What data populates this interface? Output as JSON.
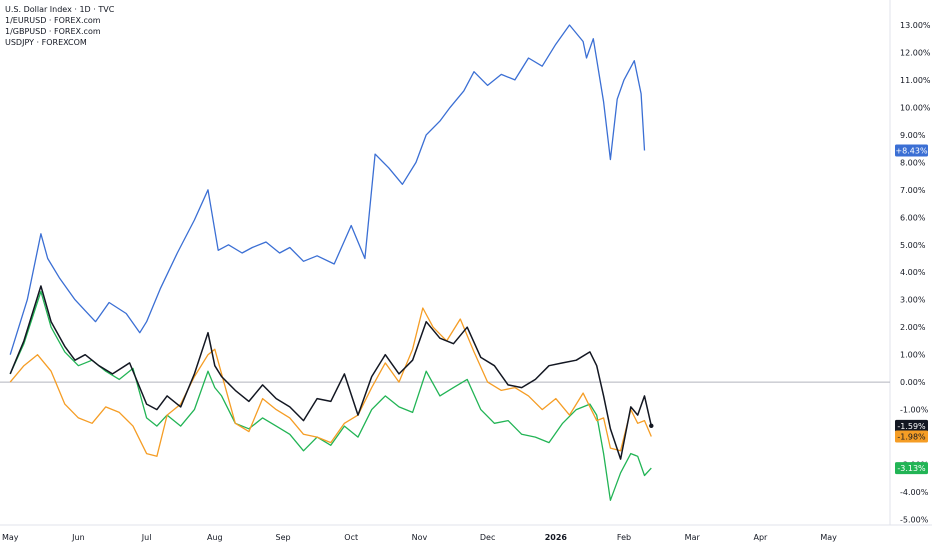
{
  "legend": {
    "title": "U.S. Dollar Index · 1D · TVC",
    "items": [
      "1/EURUSD · FOREX.com",
      "1/GBPUSD · FOREX.com",
      "USDJPY · FOREXCOM"
    ]
  },
  "chart_data": {
    "type": "line",
    "y_unit": "percent change",
    "ylim": [
      -5.2,
      13.4
    ],
    "yticks": [
      13,
      12,
      11,
      10,
      9,
      8,
      7,
      6,
      5,
      4,
      3,
      2,
      1,
      0,
      -1,
      -2,
      -3,
      -4,
      -5
    ],
    "ytick_labels": [
      "13.00%",
      "12.00%",
      "11.00%",
      "10.00%",
      "9.00%",
      "8.00%",
      "7.00%",
      "6.00%",
      "5.00%",
      "4.00%",
      "3.00%",
      "2.00%",
      "1.00%",
      "0.00%",
      "-1.00%",
      "-2.00%",
      "-3.00%",
      "-4.00%",
      "-5.00%"
    ],
    "x_labels": [
      "May",
      "Jun",
      "Jul",
      "Aug",
      "Sep",
      "Oct",
      "Nov",
      "Dec",
      "2026",
      "Feb",
      "Mar",
      "Apr",
      "May"
    ],
    "x_label_positions": [
      0,
      1,
      2,
      3,
      4,
      5,
      6,
      7,
      8,
      9,
      10,
      11,
      12
    ],
    "xlim": [
      -0.15,
      12.9
    ],
    "series": [
      {
        "color": "#3b6fd4",
        "last_label": "+8.43%",
        "x": [
          0,
          0.25,
          0.45,
          0.55,
          0.72,
          0.95,
          1.1,
          1.25,
          1.45,
          1.7,
          1.9,
          2.0,
          2.2,
          2.45,
          2.7,
          2.9,
          3.05,
          3.2,
          3.4,
          3.55,
          3.75,
          3.95,
          4.1,
          4.3,
          4.5,
          4.75,
          5.0,
          5.2,
          5.35,
          5.55,
          5.75,
          5.95,
          6.1,
          6.3,
          6.45,
          6.65,
          6.8,
          7.0,
          7.2,
          7.4,
          7.6,
          7.8,
          8.0,
          8.2,
          8.4,
          8.45,
          8.55,
          8.7,
          8.8,
          8.9,
          9.0,
          9.15,
          9.25,
          9.3
        ],
        "y": [
          1.0,
          3.0,
          5.4,
          4.5,
          3.8,
          3.0,
          2.6,
          2.2,
          2.9,
          2.5,
          1.8,
          2.2,
          3.4,
          4.7,
          5.9,
          7.0,
          4.8,
          5.0,
          4.7,
          4.9,
          5.1,
          4.7,
          4.9,
          4.4,
          4.6,
          4.3,
          5.7,
          4.5,
          8.3,
          7.8,
          7.2,
          8.0,
          9.0,
          9.5,
          10.0,
          10.6,
          11.3,
          10.8,
          11.2,
          11.0,
          11.8,
          11.5,
          12.3,
          13.0,
          12.4,
          11.8,
          12.5,
          10.2,
          8.1,
          10.3,
          11.0,
          11.7,
          10.5,
          8.43
        ]
      },
      {
        "color": "#131722",
        "last_label": "-1.59%",
        "x": [
          0,
          0.2,
          0.45,
          0.6,
          0.8,
          0.95,
          1.1,
          1.3,
          1.5,
          1.75,
          2.0,
          2.15,
          2.3,
          2.5,
          2.7,
          2.9,
          3.0,
          3.1,
          3.3,
          3.5,
          3.7,
          3.9,
          4.1,
          4.3,
          4.5,
          4.7,
          4.9,
          5.1,
          5.3,
          5.5,
          5.7,
          5.9,
          6.1,
          6.3,
          6.5,
          6.7,
          6.9,
          7.1,
          7.3,
          7.5,
          7.7,
          7.9,
          8.1,
          8.3,
          8.5,
          8.6,
          8.7,
          8.8,
          8.95,
          9.1,
          9.2,
          9.3,
          9.4
        ],
        "y": [
          0.3,
          1.5,
          3.5,
          2.2,
          1.3,
          0.8,
          1.0,
          0.6,
          0.3,
          0.7,
          -0.8,
          -1.0,
          -0.5,
          -0.9,
          0.3,
          1.8,
          0.6,
          0.2,
          -0.3,
          -0.7,
          -0.1,
          -0.6,
          -0.9,
          -1.4,
          -0.6,
          -0.7,
          0.3,
          -1.2,
          0.2,
          1.0,
          0.3,
          0.8,
          2.2,
          1.6,
          1.4,
          2.0,
          0.9,
          0.6,
          -0.1,
          -0.2,
          0.1,
          0.6,
          0.7,
          0.8,
          1.1,
          0.6,
          -0.5,
          -1.7,
          -2.8,
          -0.9,
          -1.2,
          -0.5,
          -1.59
        ]
      },
      {
        "color": "#f59d25",
        "last_label": "-1.98%",
        "x": [
          0,
          0.2,
          0.4,
          0.6,
          0.8,
          1.0,
          1.2,
          1.4,
          1.6,
          1.8,
          2.0,
          2.15,
          2.3,
          2.5,
          2.7,
          2.9,
          3.0,
          3.1,
          3.3,
          3.5,
          3.7,
          3.9,
          4.1,
          4.3,
          4.5,
          4.7,
          4.9,
          5.1,
          5.3,
          5.5,
          5.7,
          5.9,
          6.05,
          6.2,
          6.4,
          6.6,
          6.8,
          7.0,
          7.2,
          7.4,
          7.6,
          7.8,
          8.0,
          8.2,
          8.4,
          8.6,
          8.7,
          8.8,
          8.95,
          9.1,
          9.2,
          9.3,
          9.4
        ],
        "y": [
          0.0,
          0.6,
          1.0,
          0.4,
          -0.8,
          -1.3,
          -1.5,
          -0.9,
          -1.1,
          -1.6,
          -2.6,
          -2.7,
          -1.2,
          -0.8,
          0.2,
          1.0,
          1.2,
          0.3,
          -1.5,
          -1.8,
          -0.6,
          -1.0,
          -1.3,
          -1.9,
          -2.0,
          -2.2,
          -1.5,
          -1.2,
          -0.2,
          0.7,
          0.0,
          1.2,
          2.7,
          2.0,
          1.5,
          2.3,
          1.1,
          0.0,
          -0.3,
          -0.2,
          -0.5,
          -1.0,
          -0.6,
          -1.2,
          -0.4,
          -1.4,
          -1.3,
          -2.4,
          -2.5,
          -1.0,
          -1.5,
          -1.4,
          -1.98
        ]
      },
      {
        "color": "#22b455",
        "last_label": "-3.13%",
        "x": [
          0,
          0.2,
          0.45,
          0.6,
          0.8,
          1.0,
          1.2,
          1.4,
          1.6,
          1.8,
          2.0,
          2.15,
          2.3,
          2.5,
          2.7,
          2.9,
          3.0,
          3.1,
          3.3,
          3.5,
          3.7,
          3.9,
          4.1,
          4.3,
          4.5,
          4.7,
          4.9,
          5.1,
          5.3,
          5.5,
          5.7,
          5.9,
          6.1,
          6.3,
          6.5,
          6.7,
          6.9,
          7.1,
          7.3,
          7.5,
          7.7,
          7.9,
          8.1,
          8.3,
          8.5,
          8.6,
          8.7,
          8.8,
          8.95,
          9.1,
          9.2,
          9.3,
          9.4
        ],
        "y": [
          0.3,
          1.4,
          3.3,
          2.0,
          1.1,
          0.6,
          0.8,
          0.4,
          0.1,
          0.5,
          -1.3,
          -1.6,
          -1.2,
          -1.6,
          -1.0,
          0.4,
          -0.2,
          -0.5,
          -1.5,
          -1.7,
          -1.3,
          -1.6,
          -1.9,
          -2.5,
          -2.0,
          -2.3,
          -1.6,
          -2.0,
          -1.0,
          -0.5,
          -0.9,
          -1.1,
          0.4,
          -0.5,
          -0.2,
          0.1,
          -1.0,
          -1.5,
          -1.4,
          -1.9,
          -2.0,
          -2.2,
          -1.5,
          -1.0,
          -0.8,
          -1.2,
          -2.6,
          -4.3,
          -3.3,
          -2.6,
          -2.7,
          -3.4,
          -3.13
        ]
      }
    ]
  }
}
